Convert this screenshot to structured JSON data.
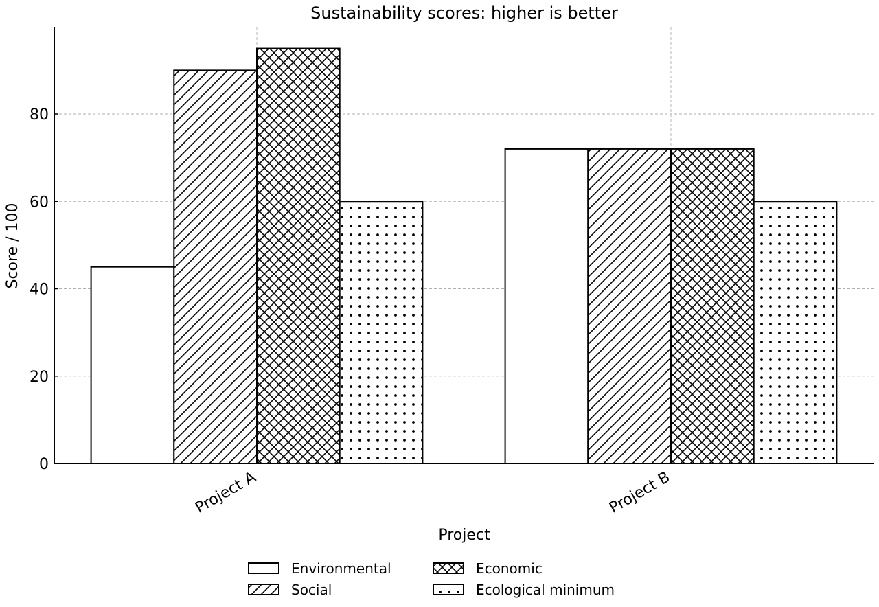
{
  "chart_data": {
    "type": "bar",
    "title": "Sustainability scores: higher is better",
    "xlabel": "Project",
    "ylabel": "Score / 100",
    "categories": [
      "Project A",
      "Project B"
    ],
    "ylim": [
      0,
      100
    ],
    "yticks": [
      0,
      20,
      40,
      60,
      80
    ],
    "grid": true,
    "legend_position": "bottom-center",
    "series": [
      {
        "name": "Environmental",
        "values": [
          45,
          72
        ],
        "pattern": "none"
      },
      {
        "name": "Social",
        "values": [
          90,
          72
        ],
        "pattern": "diagonal"
      },
      {
        "name": "Economic",
        "values": [
          95,
          72
        ],
        "pattern": "crosshatch"
      },
      {
        "name": "Ecological minimum",
        "values": [
          60,
          60
        ],
        "pattern": "dots"
      }
    ],
    "colors": {
      "bar_fill": "#ffffff",
      "bar_edge": "#000000",
      "grid": "#b0b0b0"
    }
  }
}
